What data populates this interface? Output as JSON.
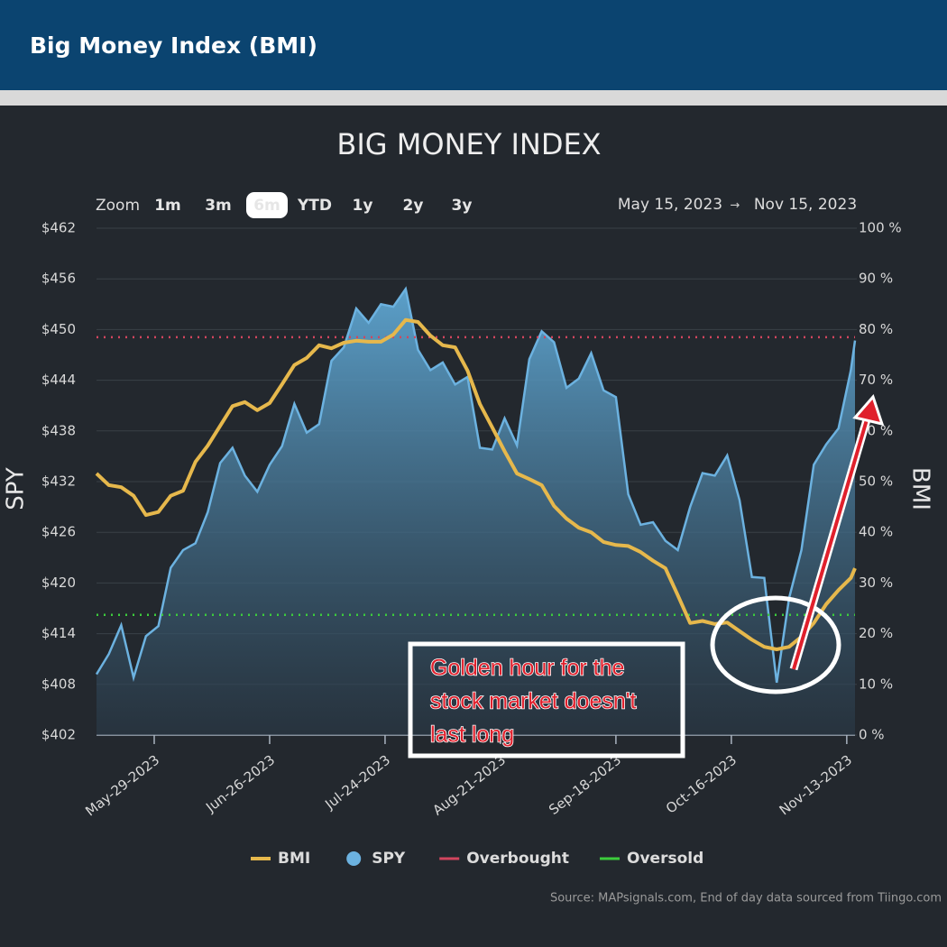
{
  "header": {
    "title": "Big Money Index (BMI)"
  },
  "toolbar": {
    "zoom_label": "Zoom",
    "zoom_options": [
      "1m",
      "3m",
      "6m",
      "YTD",
      "1y",
      "2y",
      "3y"
    ],
    "selected": 2,
    "range_start": "May 15, 2023",
    "range_arrow": "→",
    "range_end": "Nov 15, 2023"
  },
  "chart_data": {
    "type": "line",
    "title": "BIG MONEY INDEX",
    "ylabel": "SPY",
    "y2label": "BMI",
    "x": [
      "2023-05-15",
      "2023-05-18",
      "2023-05-21",
      "2023-05-24",
      "2023-05-27",
      "2023-05-30",
      "2023-06-02",
      "2023-06-05",
      "2023-06-08",
      "2023-06-11",
      "2023-06-14",
      "2023-06-17",
      "2023-06-20",
      "2023-06-23",
      "2023-06-26",
      "2023-06-29",
      "2023-07-02",
      "2023-07-05",
      "2023-07-08",
      "2023-07-11",
      "2023-07-14",
      "2023-07-17",
      "2023-07-20",
      "2023-07-23",
      "2023-07-26",
      "2023-07-29",
      "2023-08-01",
      "2023-08-04",
      "2023-08-07",
      "2023-08-10",
      "2023-08-13",
      "2023-08-16",
      "2023-08-19",
      "2023-08-22",
      "2023-08-25",
      "2023-08-28",
      "2023-08-31",
      "2023-09-03",
      "2023-09-06",
      "2023-09-09",
      "2023-09-12",
      "2023-09-15",
      "2023-09-18",
      "2023-09-21",
      "2023-09-24",
      "2023-09-27",
      "2023-09-30",
      "2023-10-03",
      "2023-10-06",
      "2023-10-09",
      "2023-10-12",
      "2023-10-15",
      "2023-10-18",
      "2023-10-21",
      "2023-10-24",
      "2023-10-27",
      "2023-10-30",
      "2023-11-02",
      "2023-11-05",
      "2023-11-08",
      "2023-11-11",
      "2023-11-14",
      "2023-11-15"
    ],
    "xlim": [
      "2023-05-15",
      "2023-11-15"
    ],
    "xticks": [
      {
        "value": "2023-05-29",
        "label": "May-29-2023"
      },
      {
        "value": "2023-06-26",
        "label": "Jun-26-2023"
      },
      {
        "value": "2023-07-24",
        "label": "Jul-24-2023"
      },
      {
        "value": "2023-08-21",
        "label": "Aug-21-2023"
      },
      {
        "value": "2023-09-18",
        "label": "Sep-18-2023"
      },
      {
        "value": "2023-10-16",
        "label": "Oct-16-2023"
      },
      {
        "value": "2023-11-13",
        "label": "Nov-13-2023"
      }
    ],
    "ylim": [
      402,
      462
    ],
    "yticks": [
      {
        "value": 402,
        "label": "$402"
      },
      {
        "value": 408,
        "label": "$408"
      },
      {
        "value": 414,
        "label": "$414"
      },
      {
        "value": 420,
        "label": "$420"
      },
      {
        "value": 426,
        "label": "$426"
      },
      {
        "value": 432,
        "label": "$432"
      },
      {
        "value": 438,
        "label": "$438"
      },
      {
        "value": 444,
        "label": "$444"
      },
      {
        "value": 450,
        "label": "$450"
      },
      {
        "value": 456,
        "label": "$456"
      },
      {
        "value": 462,
        "label": "$462"
      }
    ],
    "y2lim": [
      0,
      100
    ],
    "y2ticks": [
      {
        "value": 0,
        "label": "0 %"
      },
      {
        "value": 10,
        "label": "10 %"
      },
      {
        "value": 20,
        "label": "20 %"
      },
      {
        "value": 30,
        "label": "30 %"
      },
      {
        "value": 40,
        "label": "40 %"
      },
      {
        "value": 50,
        "label": "50 %"
      },
      {
        "value": 60,
        "label": "60 %"
      },
      {
        "value": 70,
        "label": "70 %"
      },
      {
        "value": 80,
        "label": "80 %"
      },
      {
        "value": 90,
        "label": "90 %"
      },
      {
        "value": 100,
        "label": "100 %"
      }
    ],
    "grid": true,
    "series": [
      {
        "name": "BMI",
        "color": "#e6b84c",
        "axis": "y2",
        "values": [
          51.6,
          49.3,
          48.9,
          47.2,
          43.4,
          44.0,
          47.2,
          48.2,
          53.9,
          57.1,
          61.0,
          64.9,
          65.7,
          64.1,
          65.5,
          69.2,
          73.0,
          74.4,
          76.9,
          76.3,
          77.4,
          77.8,
          77.6,
          77.6,
          79.0,
          81.9,
          81.5,
          78.8,
          76.9,
          76.5,
          71.9,
          65.3,
          60.7,
          56.0,
          51.6,
          50.5,
          49.3,
          45.2,
          42.7,
          40.9,
          40.0,
          38.1,
          37.5,
          37.3,
          36.1,
          34.4,
          32.9,
          27.6,
          22.1,
          22.5,
          21.9,
          22.2,
          20.5,
          18.8,
          17.4,
          16.9,
          17.4,
          19.4,
          22.1,
          25.8,
          28.6,
          31.0,
          32.9
        ]
      },
      {
        "name": "SPY",
        "color": "#6cb2e0",
        "area": true,
        "values": [
          409.2,
          411.6,
          415.0,
          408.8,
          413.7,
          414.9,
          421.8,
          423.9,
          424.7,
          428.4,
          434.2,
          436.0,
          432.7,
          430.8,
          434.0,
          436.2,
          441.2,
          437.8,
          438.8,
          446.3,
          447.9,
          452.5,
          450.8,
          453.0,
          452.7,
          454.8,
          447.6,
          445.2,
          446.1,
          443.5,
          444.4,
          436.0,
          435.8,
          439.5,
          436.3,
          446.5,
          449.8,
          448.5,
          443.1,
          444.2,
          447.2,
          442.8,
          442.0,
          430.5,
          426.9,
          427.2,
          425.0,
          423.9,
          429.0,
          433.0,
          432.7,
          435.1,
          429.8,
          420.7,
          420.6,
          408.2,
          418.2,
          423.9,
          434.0,
          436.4,
          438.3,
          445.2,
          448.7
        ]
      }
    ],
    "reference_lines": [
      {
        "name": "Overbought",
        "color": "#d2455e",
        "value": 78.5,
        "axis": "y2"
      },
      {
        "name": "Oversold",
        "color": "#3ccc3c",
        "value": 23.7,
        "axis": "y2"
      }
    ],
    "annotation": {
      "lines": [
        "Golden hour for the",
        "stock market doesn't",
        "last long"
      ]
    },
    "source": "Source: MAPsignals.com, End of day data sourced from Tiingo.com"
  }
}
